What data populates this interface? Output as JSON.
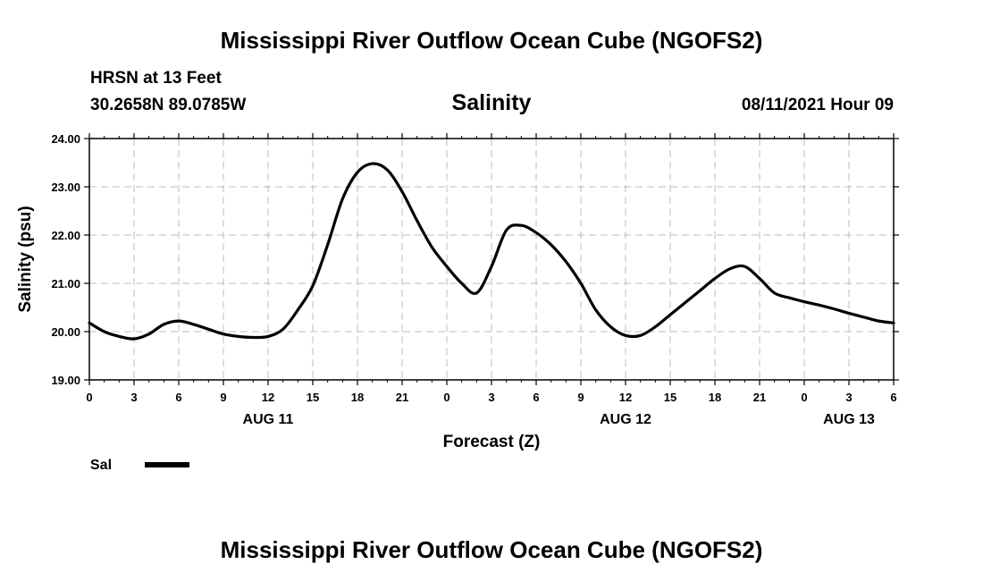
{
  "page": {
    "top_title": "Mississippi River Outflow Ocean Cube (NGOFS2)",
    "bottom_title": "Mississippi River Outflow Ocean Cube (NGOFS2)",
    "station_line": "HRSN at 13 Feet",
    "coords": "30.2658N  89.0785W",
    "variable_title": "Salinity",
    "datetime": "08/11/2021 Hour 09"
  },
  "chart_data": {
    "type": "line",
    "title": "Salinity",
    "xlabel": "Forecast (Z)",
    "ylabel": "Salinity (psu)",
    "xlim": [
      0,
      54
    ],
    "ylim": [
      19.0,
      24.0
    ],
    "grid": true,
    "x_tick_labels": [
      "0",
      "3",
      "6",
      "9",
      "12",
      "15",
      "18",
      "21",
      "0",
      "3",
      "6",
      "9",
      "12",
      "15",
      "18",
      "21",
      "0",
      "3",
      "6"
    ],
    "y_tick_labels": [
      "19.00",
      "20.00",
      "21.00",
      "22.00",
      "23.00",
      "24.00"
    ],
    "day_labels": [
      {
        "label": "AUG 11",
        "at_hour": 12
      },
      {
        "label": "AUG 12",
        "at_hour": 36
      },
      {
        "label": "AUG 13",
        "at_hour": 51
      }
    ],
    "legend": [
      {
        "name": "Sal",
        "position": "bottom-left"
      }
    ],
    "series": [
      {
        "name": "Sal",
        "x": [
          0,
          1,
          2,
          3,
          4,
          5,
          6,
          7,
          8,
          9,
          10,
          11,
          12,
          13,
          14,
          15,
          16,
          17,
          18,
          19,
          20,
          21,
          22,
          23,
          24,
          25,
          26,
          27,
          28,
          29,
          30,
          31,
          32,
          33,
          34,
          35,
          36,
          37,
          38,
          39,
          40,
          41,
          42,
          43,
          44,
          45,
          46,
          47,
          48,
          49,
          50,
          51,
          52,
          53,
          54
        ],
        "values": [
          20.18,
          20.0,
          19.9,
          19.85,
          19.95,
          20.15,
          20.22,
          20.15,
          20.05,
          19.95,
          19.9,
          19.88,
          19.9,
          20.05,
          20.45,
          20.95,
          21.8,
          22.75,
          23.3,
          23.48,
          23.35,
          22.9,
          22.3,
          21.75,
          21.35,
          21.0,
          20.8,
          21.35,
          22.1,
          22.2,
          22.05,
          21.8,
          21.45,
          21.0,
          20.45,
          20.1,
          19.92,
          19.92,
          20.1,
          20.35,
          20.6,
          20.85,
          21.1,
          21.3,
          21.35,
          21.1,
          20.8,
          20.7,
          20.62,
          20.55,
          20.47,
          20.38,
          20.3,
          20.22,
          20.18
        ]
      }
    ]
  }
}
